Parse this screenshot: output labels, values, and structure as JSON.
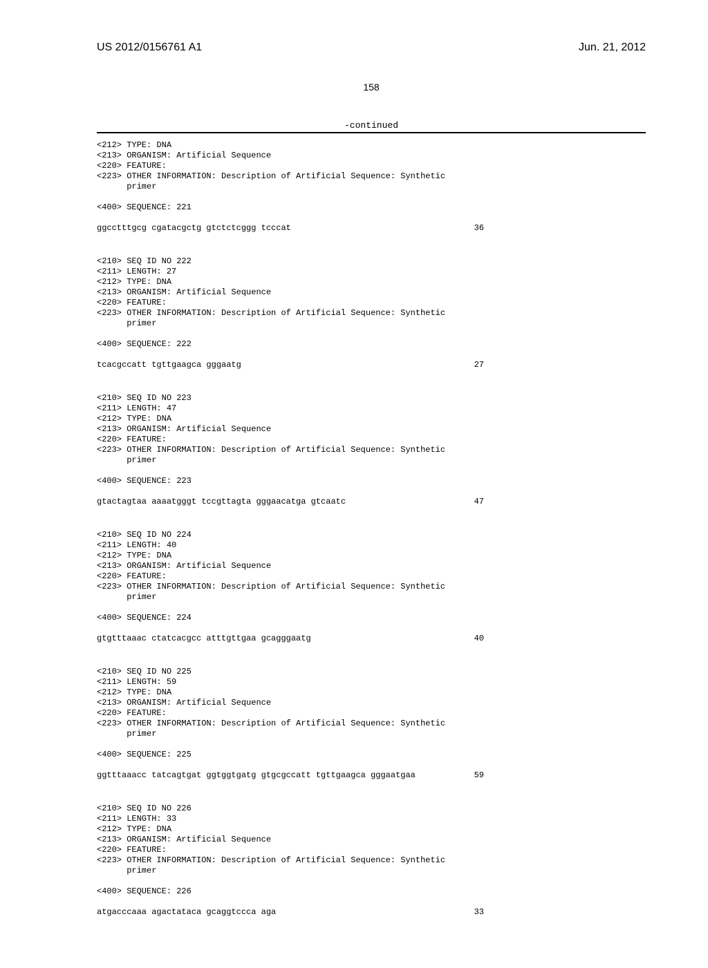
{
  "header": {
    "doc_id": "US 2012/0156761 A1",
    "doc_date": "Jun. 21, 2012"
  },
  "page_number": "158",
  "continued_label": "-continued",
  "blocks": [
    {
      "tags": [
        "<212> TYPE: DNA",
        "<213> ORGANISM: Artificial Sequence",
        "<220> FEATURE:",
        "<223> OTHER INFORMATION: Description of Artificial Sequence: Synthetic",
        "      primer"
      ],
      "seq_label": "<400> SEQUENCE: 221",
      "sequence": "ggcctttgcg cgatacgctg gtctctcggg tcccat",
      "length": "36",
      "include_length_in_tags": false
    },
    {
      "tags": [
        "<210> SEQ ID NO 222",
        "<211> LENGTH: 27",
        "<212> TYPE: DNA",
        "<213> ORGANISM: Artificial Sequence",
        "<220> FEATURE:",
        "<223> OTHER INFORMATION: Description of Artificial Sequence: Synthetic",
        "      primer"
      ],
      "seq_label": "<400> SEQUENCE: 222",
      "sequence": "tcacgccatt tgttgaagca gggaatg",
      "length": "27"
    },
    {
      "tags": [
        "<210> SEQ ID NO 223",
        "<211> LENGTH: 47",
        "<212> TYPE: DNA",
        "<213> ORGANISM: Artificial Sequence",
        "<220> FEATURE:",
        "<223> OTHER INFORMATION: Description of Artificial Sequence: Synthetic",
        "      primer"
      ],
      "seq_label": "<400> SEQUENCE: 223",
      "sequence": "gtactagtaa aaaatgggt tccgttagta gggaacatga gtcaatc",
      "length": "47"
    },
    {
      "tags": [
        "<210> SEQ ID NO 224",
        "<211> LENGTH: 40",
        "<212> TYPE: DNA",
        "<213> ORGANISM: Artificial Sequence",
        "<220> FEATURE:",
        "<223> OTHER INFORMATION: Description of Artificial Sequence: Synthetic",
        "      primer"
      ],
      "seq_label": "<400> SEQUENCE: 224",
      "sequence": "gtgtttaaac ctatcacgcc atttgttgaa gcagggaatg",
      "length": "40"
    },
    {
      "tags": [
        "<210> SEQ ID NO 225",
        "<211> LENGTH: 59",
        "<212> TYPE: DNA",
        "<213> ORGANISM: Artificial Sequence",
        "<220> FEATURE:",
        "<223> OTHER INFORMATION: Description of Artificial Sequence: Synthetic",
        "      primer"
      ],
      "seq_label": "<400> SEQUENCE: 225",
      "sequence": "ggtttaaacc tatcagtgat ggtggtgatg gtgcgccatt tgttgaagca gggaatgaa",
      "length": "59"
    },
    {
      "tags": [
        "<210> SEQ ID NO 226",
        "<211> LENGTH: 33",
        "<212> TYPE: DNA",
        "<213> ORGANISM: Artificial Sequence",
        "<220> FEATURE:",
        "<223> OTHER INFORMATION: Description of Artificial Sequence: Synthetic",
        "      primer"
      ],
      "seq_label": "<400> SEQUENCE: 226",
      "sequence": "atgacccaaa agactataca gcaggtccca aga",
      "length": "33"
    }
  ]
}
